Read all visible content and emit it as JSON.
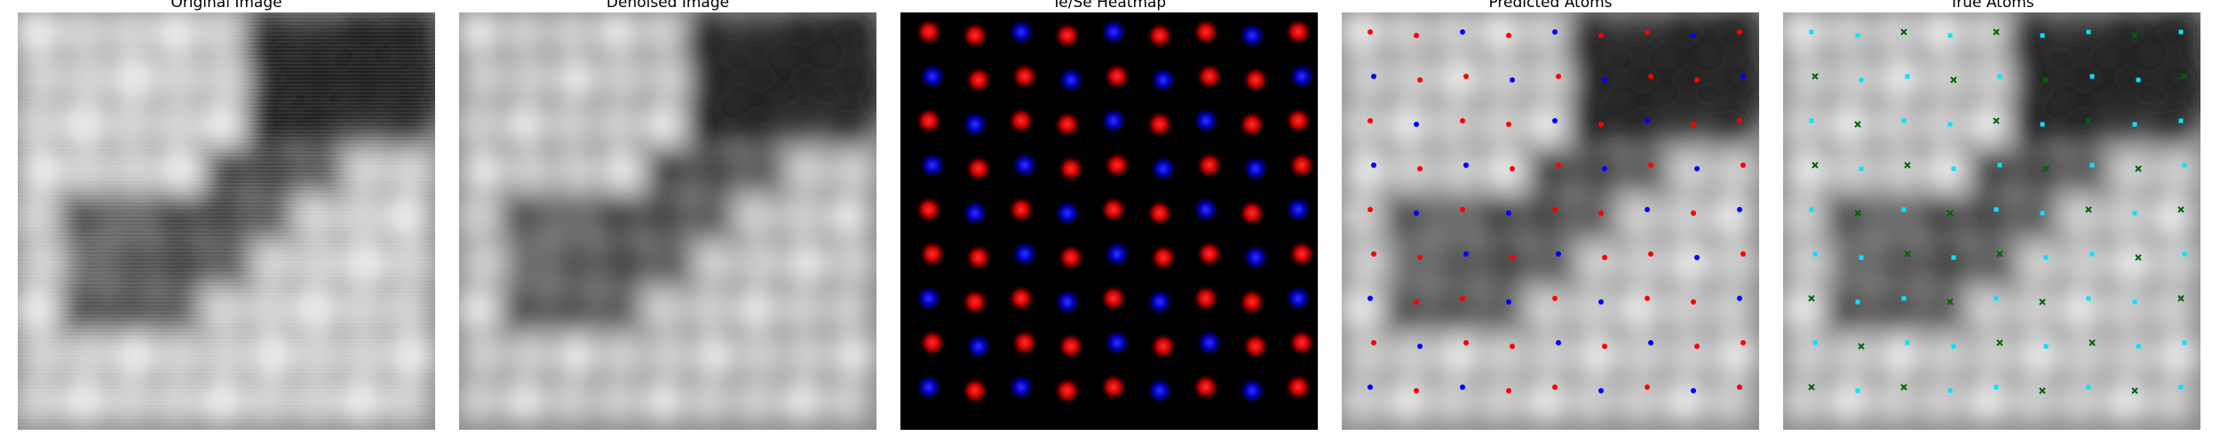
{
  "panels": [
    {
      "key": "original",
      "title": "Original Image"
    },
    {
      "key": "denoised",
      "title": "Denoised Image"
    },
    {
      "key": "heatmap",
      "title": "Te/Se Heatmap"
    },
    {
      "key": "predicted",
      "title": "Predicted Atoms"
    },
    {
      "key": "true",
      "title": "True Atoms"
    }
  ],
  "colors": {
    "te": "#ff0000",
    "se": "#0000ff",
    "true_a": "#00e5ff",
    "true_b": "#006400",
    "heat_bg": "#000000"
  }
}
